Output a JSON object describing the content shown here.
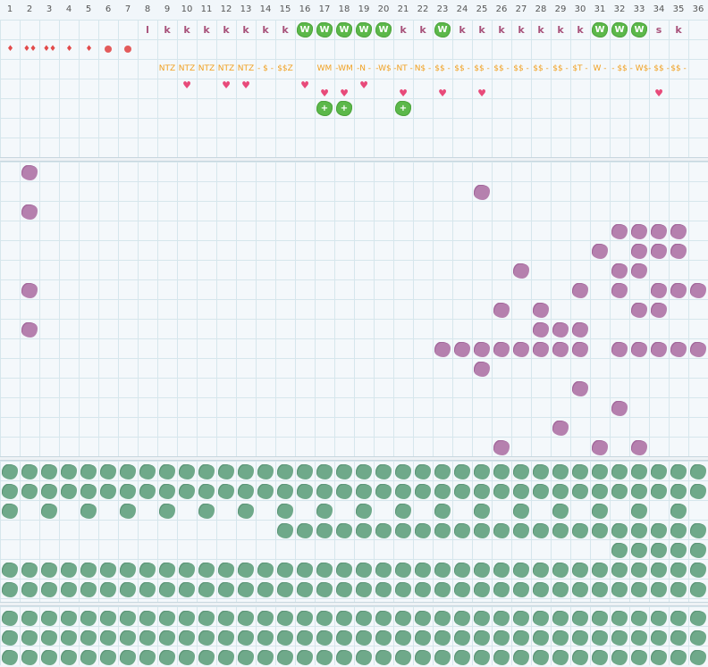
{
  "columns": [
    "1",
    "2",
    "3",
    "4",
    "5",
    "6",
    "7",
    "8",
    "9",
    "10",
    "11",
    "12",
    "13",
    "14",
    "15",
    "16",
    "17",
    "18",
    "19",
    "20",
    "21",
    "22",
    "23",
    "24",
    "25",
    "26",
    "27",
    "28",
    "29",
    "30",
    "31",
    "32",
    "33",
    "34",
    "35",
    "36"
  ],
  "row_letters": [
    {
      "c": 8,
      "t": "l",
      "kind": "k"
    },
    {
      "c": 9,
      "t": "k",
      "kind": "k"
    },
    {
      "c": 10,
      "t": "k",
      "kind": "k"
    },
    {
      "c": 11,
      "t": "k",
      "kind": "k"
    },
    {
      "c": 12,
      "t": "k",
      "kind": "k"
    },
    {
      "c": 13,
      "t": "k",
      "kind": "k"
    },
    {
      "c": 14,
      "t": "k",
      "kind": "k"
    },
    {
      "c": 15,
      "t": "k",
      "kind": "k"
    },
    {
      "c": 16,
      "t": "W",
      "kind": "w"
    },
    {
      "c": 17,
      "t": "W",
      "kind": "w"
    },
    {
      "c": 18,
      "t": "W",
      "kind": "w"
    },
    {
      "c": 19,
      "t": "W",
      "kind": "w"
    },
    {
      "c": 20,
      "t": "W",
      "kind": "w"
    },
    {
      "c": 21,
      "t": "k",
      "kind": "k"
    },
    {
      "c": 22,
      "t": "k",
      "kind": "k"
    },
    {
      "c": 23,
      "t": "W",
      "kind": "w"
    },
    {
      "c": 24,
      "t": "k",
      "kind": "k"
    },
    {
      "c": 25,
      "t": "k",
      "kind": "k"
    },
    {
      "c": 26,
      "t": "k",
      "kind": "k"
    },
    {
      "c": 27,
      "t": "k",
      "kind": "k"
    },
    {
      "c": 28,
      "t": "k",
      "kind": "k"
    },
    {
      "c": 29,
      "t": "k",
      "kind": "k"
    },
    {
      "c": 30,
      "t": "k",
      "kind": "k"
    },
    {
      "c": 31,
      "t": "W",
      "kind": "w"
    },
    {
      "c": 32,
      "t": "W",
      "kind": "w"
    },
    {
      "c": 33,
      "t": "W",
      "kind": "w"
    },
    {
      "c": 34,
      "t": "s",
      "kind": "k"
    },
    {
      "c": 35,
      "t": "k",
      "kind": "k"
    }
  ],
  "row_markers": [
    {
      "c": 1,
      "t": "♦",
      "kind": "drop"
    },
    {
      "c": 2,
      "t": "♦♦",
      "kind": "drop"
    },
    {
      "c": 3,
      "t": "♦♦",
      "kind": "drop"
    },
    {
      "c": 4,
      "t": "♦",
      "kind": "drop"
    },
    {
      "c": 5,
      "t": "♦",
      "kind": "drop"
    },
    {
      "c": 6,
      "kind": "dot"
    },
    {
      "c": 7,
      "kind": "dot"
    }
  ],
  "row_codes": [
    {
      "c": 9,
      "t": "NTZ"
    },
    {
      "c": 10,
      "t": "NTZ"
    },
    {
      "c": 11,
      "t": "NTZ"
    },
    {
      "c": 12,
      "t": "NTZ"
    },
    {
      "c": 13,
      "t": "NTZ"
    },
    {
      "c": 14,
      "t": "- $ -"
    },
    {
      "c": 15,
      "t": "$$Z"
    },
    {
      "c": 17,
      "t": "WM"
    },
    {
      "c": 18,
      "t": "-WM"
    },
    {
      "c": 19,
      "t": "-N -"
    },
    {
      "c": 20,
      "t": "-W$"
    },
    {
      "c": 21,
      "t": "-NT -"
    },
    {
      "c": 22,
      "t": "N$ -"
    },
    {
      "c": 23,
      "t": "$$ -"
    },
    {
      "c": 24,
      "t": "$$ -"
    },
    {
      "c": 25,
      "t": "$$ -"
    },
    {
      "c": 26,
      "t": "$$ -"
    },
    {
      "c": 27,
      "t": "$$ -"
    },
    {
      "c": 28,
      "t": "$$ -"
    },
    {
      "c": 29,
      "t": "$$ -"
    },
    {
      "c": 30,
      "t": "$T -"
    },
    {
      "c": 31,
      "t": "W -"
    },
    {
      "c": 32,
      "t": "- $$"
    },
    {
      "c": 33,
      "t": "- W$"
    },
    {
      "c": 34,
      "t": "- $$ -"
    },
    {
      "c": 35,
      "t": "$$ -"
    }
  ],
  "hearts_row1": [
    10,
    12,
    13,
    16,
    19
  ],
  "hearts_row2": [
    17,
    18,
    21,
    23,
    25,
    34
  ],
  "plus_blobs": [
    17,
    18,
    21
  ],
  "heart_glyph": "♥",
  "plus_glyph": "+",
  "purple_cells": [
    [
      2,
      0
    ],
    [
      25,
      1
    ],
    [
      2,
      2
    ],
    [
      32,
      3
    ],
    [
      33,
      3
    ],
    [
      34,
      3
    ],
    [
      35,
      3
    ],
    [
      31,
      4
    ],
    [
      33,
      4
    ],
    [
      34,
      4
    ],
    [
      35,
      4
    ],
    [
      27,
      5
    ],
    [
      32,
      5
    ],
    [
      33,
      5
    ],
    [
      2,
      6
    ],
    [
      30,
      6
    ],
    [
      32,
      6
    ],
    [
      34,
      6
    ],
    [
      35,
      6
    ],
    [
      36,
      6
    ],
    [
      26,
      7
    ],
    [
      28,
      7
    ],
    [
      33,
      7
    ],
    [
      34,
      7
    ],
    [
      2,
      8
    ],
    [
      28,
      8
    ],
    [
      29,
      8
    ],
    [
      30,
      8
    ],
    [
      23,
      9
    ],
    [
      24,
      9
    ],
    [
      25,
      9
    ],
    [
      26,
      9
    ],
    [
      27,
      9
    ],
    [
      28,
      9
    ],
    [
      29,
      9
    ],
    [
      30,
      9
    ],
    [
      32,
      9
    ],
    [
      33,
      9
    ],
    [
      34,
      9
    ],
    [
      35,
      9
    ],
    [
      36,
      9
    ],
    [
      25,
      10
    ],
    [
      30,
      11
    ],
    [
      32,
      12
    ],
    [
      29,
      13
    ],
    [
      26,
      14
    ],
    [
      31,
      14
    ],
    [
      33,
      14
    ]
  ],
  "green_rows": {
    "full": [
      0,
      1,
      5,
      6,
      7,
      8,
      9
    ],
    "row2": [
      1,
      3,
      5,
      7,
      9,
      11,
      13,
      15,
      17,
      19,
      21,
      23,
      25,
      27,
      29,
      31,
      33,
      35
    ],
    "row3_start": 15,
    "row4_start": 32
  },
  "colors": {
    "purple": "#b27aaa",
    "green": "#6fa98a",
    "bright_green": "#5cb84a",
    "orange": "#f0a020",
    "heart": "#e84a7a"
  }
}
